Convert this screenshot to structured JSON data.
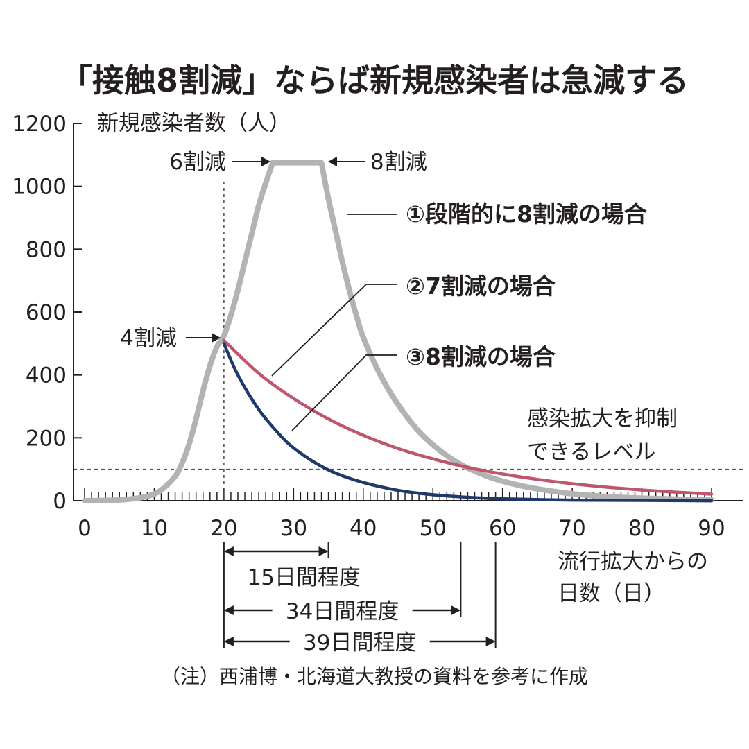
{
  "chart_data": {
    "type": "line",
    "title": "「接触8割減」ならば新規感染者は急減する",
    "ylabel": "新規感染者数（人）",
    "xlabel_lines": [
      "流行拡大からの",
      "日数（日）"
    ],
    "xlim": [
      0,
      90
    ],
    "ylim": [
      0,
      1200
    ],
    "x_ticks": [
      0,
      10,
      20,
      30,
      40,
      50,
      60,
      70,
      80,
      90
    ],
    "y_ticks": [
      0,
      200,
      400,
      600,
      800,
      1000,
      1200
    ],
    "grid": false,
    "series": [
      {
        "name": "①段階的に8割減の場合",
        "color": "#b3b3b3",
        "x": [
          0,
          3,
          6,
          9,
          11,
          13,
          14,
          15,
          16,
          17,
          18,
          19,
          20,
          21,
          22,
          23,
          24,
          25,
          26,
          27,
          29,
          31,
          33,
          34,
          35,
          36,
          37,
          38,
          39,
          40,
          42,
          44,
          46,
          48,
          50,
          52,
          54,
          56,
          58,
          60,
          63,
          66,
          70,
          75,
          80,
          85,
          90
        ],
        "values": [
          0,
          1,
          4,
          14,
          34,
          78,
          120,
          180,
          260,
          350,
          430,
          490,
          525,
          590,
          670,
          760,
          850,
          940,
          1010,
          1075,
          1075,
          1075,
          1075,
          1075,
          960,
          860,
          760,
          670,
          590,
          520,
          420,
          340,
          275,
          220,
          178,
          143,
          115,
          94,
          76,
          62,
          46,
          34,
          22,
          13,
          8,
          5,
          3
        ]
      },
      {
        "name": "②7割減の場合",
        "color": "#c0566e",
        "x": [
          20,
          25,
          30,
          35,
          40,
          45,
          50,
          55,
          60,
          65,
          70,
          75,
          80,
          85,
          90
        ],
        "values": [
          510,
          405,
          325,
          260,
          208,
          166,
          133,
          106,
          85,
          68,
          54,
          43,
          34,
          27,
          21
        ]
      },
      {
        "name": "③8割減の場合",
        "color": "#1f3a6a",
        "x": [
          20,
          22,
          25,
          28,
          30,
          33,
          36,
          40,
          45,
          50,
          55,
          60,
          70,
          80,
          90
        ],
        "values": [
          500,
          400,
          290,
          210,
          168,
          122,
          88,
          58,
          33,
          19,
          11,
          6,
          2,
          1,
          0
        ]
      }
    ],
    "reference_line": {
      "y": 100,
      "label_lines": [
        "感染拡大を抑制",
        "できるレベル"
      ]
    },
    "marker_line_x": 20,
    "annotations": {
      "reduction_4": "4割減",
      "reduction_6": "6割減",
      "reduction_8": "8割減"
    },
    "spans": [
      {
        "from": 20,
        "to": 35,
        "label": "15日間程度"
      },
      {
        "from": 20,
        "to": 54,
        "label": "34日間程度"
      },
      {
        "from": 20,
        "to": 59,
        "label": "39日間程度"
      }
    ],
    "note": "（注）西浦博・北海道大教授の資料を参考に作成"
  }
}
